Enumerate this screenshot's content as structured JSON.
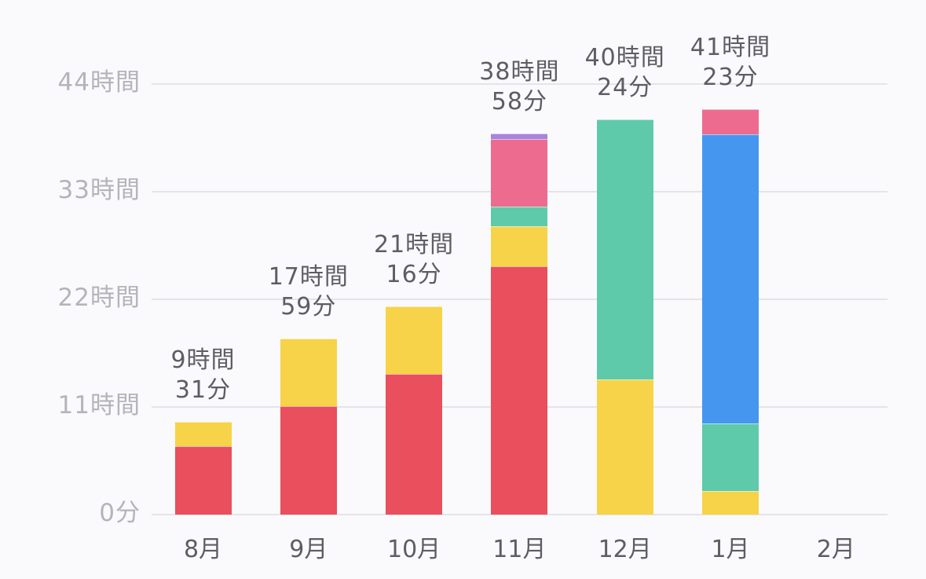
{
  "chart_data": {
    "type": "bar",
    "stacked": true,
    "title": "",
    "xlabel": "",
    "ylabel": "",
    "ylim_hours": [
      0,
      44
    ],
    "grid": true,
    "legend": "none",
    "y_ticks": [
      "0分",
      "11時間",
      "22時間",
      "33時間",
      "44時間"
    ],
    "y_tick_values_hours": [
      0,
      11,
      22,
      33,
      44
    ],
    "categories": [
      "8月",
      "9月",
      "10月",
      "11月",
      "12月",
      "1月",
      "2月"
    ],
    "totals_labels": [
      {
        "line1": "9時間",
        "line2": "31分"
      },
      {
        "line1": "17時間",
        "line2": "59分"
      },
      {
        "line1": "21時間",
        "line2": "16分"
      },
      {
        "line1": "38時間",
        "line2": "58分"
      },
      {
        "line1": "40時間",
        "line2": "24分"
      },
      {
        "line1": "41時間",
        "line2": "23分"
      },
      null
    ],
    "totals_hours": [
      9.52,
      17.98,
      21.27,
      38.97,
      40.4,
      41.38,
      0
    ],
    "series": [
      {
        "name": "red",
        "color": "#e94f5c",
        "values": [
          7.0,
          11.1,
          14.4,
          25.4,
          0,
          0,
          0
        ]
      },
      {
        "name": "yellow",
        "color": "#f6d348",
        "values": [
          2.5,
          6.9,
          6.9,
          4.1,
          13.8,
          2.4,
          0
        ]
      },
      {
        "name": "teal",
        "color": "#5ecaa9",
        "values": [
          0,
          0,
          0,
          2.0,
          26.6,
          6.9,
          0
        ]
      },
      {
        "name": "blue",
        "color": "#4596ef",
        "values": [
          0,
          0,
          0,
          0,
          0,
          29.6,
          0
        ]
      },
      {
        "name": "pink",
        "color": "#ec6b8e",
        "values": [
          0,
          0,
          0,
          6.9,
          0,
          2.5,
          0
        ]
      },
      {
        "name": "purple",
        "color": "#a486e0",
        "values": [
          0,
          0,
          0,
          0.57,
          0,
          0,
          0
        ]
      }
    ]
  }
}
